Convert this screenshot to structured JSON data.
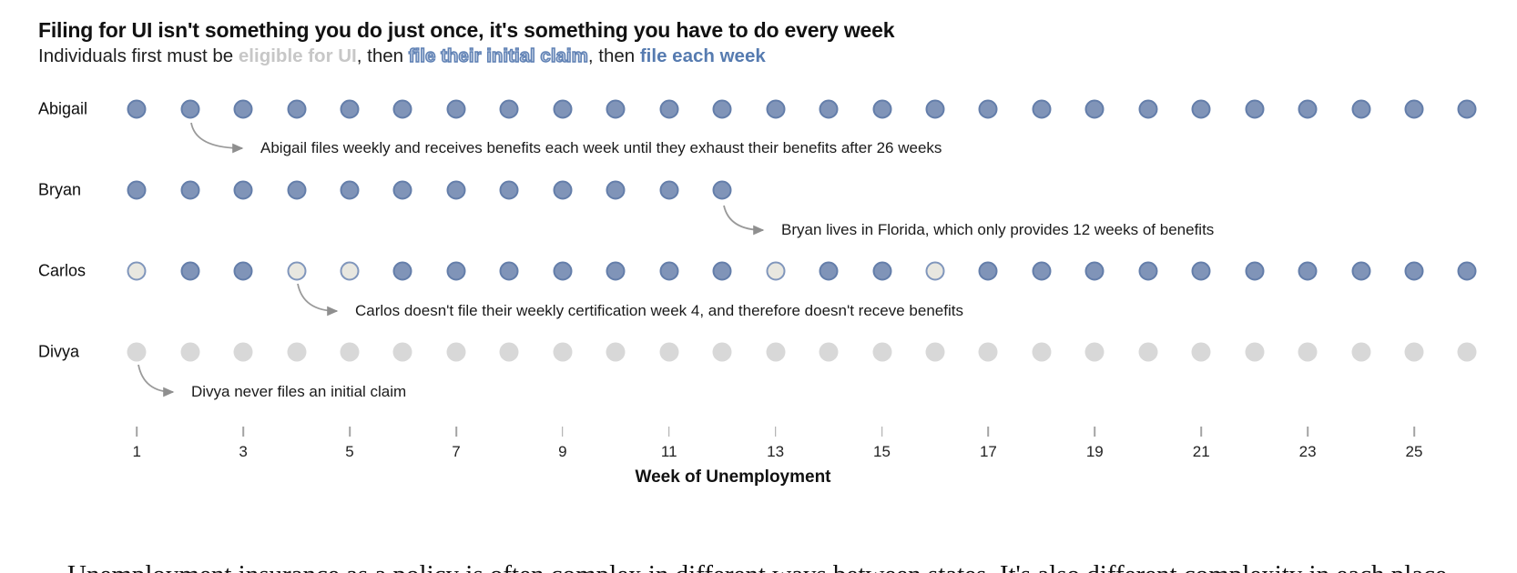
{
  "header": {
    "title": "Filing for UI isn't something you do just once, it's something you have to do every week",
    "subtitle": {
      "part1": "Individuals first must be ",
      "eligible": "eligible for UI",
      "sep1": ", then ",
      "initial_claim": "file their initial claim",
      "sep2": ", then ",
      "each_week": "file each week"
    }
  },
  "chart_data": {
    "type": "scatter",
    "title": "Filing for UI isn't something you do just once, it's something you have to do every week",
    "xlabel": "Week of Unemployment",
    "x_range": [
      1,
      26
    ],
    "x_ticks": [
      1,
      3,
      5,
      7,
      9,
      11,
      13,
      15,
      17,
      19,
      21,
      23,
      25
    ],
    "grid": false,
    "legend": "none",
    "status_meaning": {
      "received": "filed and received benefits (blue dot)",
      "missed": "did not file weekly certification, no benefit (light dot with blue ring)",
      "not_filed": "never filed an initial claim (gray dot)",
      "absent": "benefits exhausted, no dot drawn"
    },
    "colors": {
      "received_fill": "#8094b8",
      "received_border": "#647eaa",
      "missed_fill": "#e8e7e0",
      "missed_border": "#8096bc",
      "not_filed_fill": "#d8d8d8",
      "arrow": "#9a9a9a",
      "accent_blue": "#567bb0",
      "accent_gray": "#c7c7c7"
    },
    "rows": [
      {
        "name": "Abigail",
        "annotation": "Abigail files weekly and receives benefits each week until they exhaust their benefits after 26 weeks",
        "annotation_week": 2,
        "statuses": [
          "received",
          "received",
          "received",
          "received",
          "received",
          "received",
          "received",
          "received",
          "received",
          "received",
          "received",
          "received",
          "received",
          "received",
          "received",
          "received",
          "received",
          "received",
          "received",
          "received",
          "received",
          "received",
          "received",
          "received",
          "received",
          "received"
        ]
      },
      {
        "name": "Bryan",
        "annotation": "Bryan lives in Florida, which only provides 12 weeks of benefits",
        "annotation_week": 12,
        "statuses": [
          "received",
          "received",
          "received",
          "received",
          "received",
          "received",
          "received",
          "received",
          "received",
          "received",
          "received",
          "received",
          "absent",
          "absent",
          "absent",
          "absent",
          "absent",
          "absent",
          "absent",
          "absent",
          "absent",
          "absent",
          "absent",
          "absent",
          "absent",
          "absent"
        ]
      },
      {
        "name": "Carlos",
        "annotation": "Carlos doesn't file their weekly certification week 4, and therefore doesn't receve benefits",
        "annotation_week": 4,
        "statuses": [
          "missed",
          "received",
          "received",
          "missed",
          "missed",
          "received",
          "received",
          "received",
          "received",
          "received",
          "received",
          "received",
          "missed",
          "received",
          "received",
          "missed",
          "received",
          "received",
          "received",
          "received",
          "received",
          "received",
          "received",
          "received",
          "received",
          "received"
        ]
      },
      {
        "name": "Divya",
        "annotation": "Divya never files an initial claim",
        "annotation_week": 1,
        "statuses": [
          "not_filed",
          "not_filed",
          "not_filed",
          "not_filed",
          "not_filed",
          "not_filed",
          "not_filed",
          "not_filed",
          "not_filed",
          "not_filed",
          "not_filed",
          "not_filed",
          "not_filed",
          "not_filed",
          "not_filed",
          "not_filed",
          "not_filed",
          "not_filed",
          "not_filed",
          "not_filed",
          "not_filed",
          "not_filed",
          "not_filed",
          "not_filed",
          "not_filed",
          "not_filed"
        ]
      }
    ]
  },
  "footer": {
    "partial_text": "Unemployment insurance as a policy is often complex in different ways between states. It's also different complexity in each place."
  }
}
